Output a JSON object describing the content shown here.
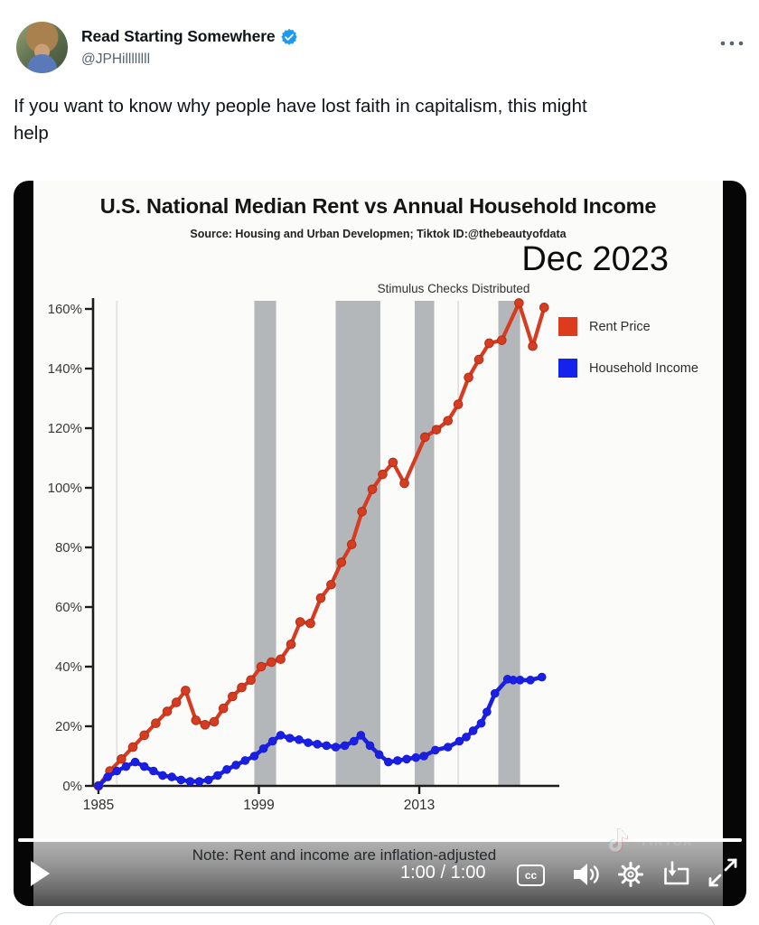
{
  "header": {
    "display_name": "Read Starting Somewhere",
    "handle": "@JPHillllllll",
    "verified_color": "#1d9bf0"
  },
  "tweet": {
    "text": "If you want to know why people have lost faith in capitalism, this might help",
    "lines": [
      "If you want to know why people have lost faith in capitalism, this might",
      "help"
    ]
  },
  "video": {
    "note": "Note: Rent and income are inflation-adjusted",
    "time": "1:00 / 1:00",
    "cc_label": "cc",
    "watermark": "TikTok",
    "progress_percent": 100
  },
  "chart_data": {
    "type": "line",
    "title": "U.S. National Median Rent vs Annual Household Income",
    "source": "Source: Housing and Urban Developmen;  Tiktok ID:@thebeautyofdata",
    "date_label": "Dec 2023",
    "annotation": "Stimulus Checks Distributed",
    "xlabel": "",
    "ylabel": "",
    "xlim": [
      1985,
      2024.3
    ],
    "ylim": [
      0,
      163
    ],
    "x_ticks": [
      1985,
      1999,
      2013
    ],
    "y_ticks": [
      "0%",
      "20%",
      "40%",
      "60%",
      "80%",
      "100%",
      "120%",
      "140%",
      "160%"
    ],
    "y_tick_values": [
      0,
      20,
      40,
      60,
      80,
      100,
      120,
      140,
      160
    ],
    "grid": false,
    "legend_position": "upper right",
    "shaded_periods": [
      [
        1998.6,
        2000.5
      ],
      [
        2005.7,
        2009.6
      ],
      [
        2012.6,
        2014.3
      ],
      [
        2019.9,
        2021.8
      ]
    ],
    "shaded_color": "#b4b7b9",
    "faint_guides": [
      1986.6,
      2016.4
    ],
    "legend": [
      {
        "name": "Rent Price",
        "color": "#dc3c1d"
      },
      {
        "name": "Household Income",
        "color": "#1522ee"
      }
    ],
    "series": [
      {
        "name": "Rent Price",
        "color": "#d63c21",
        "x": [
          1985,
          1986,
          1987,
          1988,
          1989,
          1990,
          1991,
          1991.8,
          1992.6,
          1993.5,
          1994.3,
          1995.1,
          1995.9,
          1996.7,
          1997.5,
          1998.3,
          1999.2,
          2000.1,
          2000.9,
          2001.8,
          2002.6,
          2003.5,
          2004.4,
          2005.3,
          2006.2,
          2007.1,
          2008,
          2008.9,
          2009.8,
          2010.7,
          2011.7,
          2013.5,
          2014.5,
          2015.5,
          2016.4,
          2017.3,
          2018.2,
          2019.1,
          2020.2,
          2021.7,
          2022.9,
          2023.9
        ],
        "values": [
          0,
          5,
          9,
          13,
          17,
          21,
          25,
          28,
          32,
          22,
          20.5,
          21.5,
          26,
          30,
          33,
          35.5,
          40,
          41.5,
          42.5,
          47.5,
          55,
          54.5,
          63,
          67.5,
          75,
          81,
          92,
          99.5,
          104.5,
          108.5,
          101.5,
          117,
          119.5,
          122.5,
          128,
          137,
          143,
          148.5,
          149.5,
          162,
          147.5,
          160.5
        ]
      },
      {
        "name": "Household Income",
        "color": "#1b20e0",
        "x": [
          1985,
          1985.8,
          1986.6,
          1987.4,
          1988.2,
          1989,
          1989.8,
          1990.6,
          1991.4,
          1992.2,
          1993,
          1993.8,
          1994.6,
          1995.4,
          1996.2,
          1997,
          1997.8,
          1998.6,
          1999.4,
          2000.2,
          2000.9,
          2001.7,
          2002.5,
          2003.3,
          2004.1,
          2004.9,
          2005.7,
          2006.5,
          2007.3,
          2007.9,
          2008.7,
          2009.5,
          2010.3,
          2011.1,
          2011.9,
          2012.7,
          2013.4,
          2014.4,
          2015.5,
          2016.5,
          2017.1,
          2017.7,
          2018.4,
          2018.9,
          2019.6,
          2020.7,
          2021.2,
          2021.8,
          2022.7,
          2023.7
        ],
        "values": [
          0,
          3,
          5,
          6.5,
          8,
          6.5,
          5,
          3.5,
          3,
          2,
          1.5,
          1.5,
          2,
          3.5,
          5.5,
          7,
          8.5,
          10,
          12.5,
          15,
          17,
          16,
          15.5,
          14.5,
          14,
          13.5,
          13,
          13.5,
          15,
          17,
          13.5,
          10.5,
          8,
          8.5,
          9,
          9.5,
          10,
          12,
          13,
          15,
          16.4,
          18.5,
          21,
          24.8,
          31,
          35.8,
          35.5,
          35.5,
          35.5,
          36.5
        ]
      }
    ]
  }
}
